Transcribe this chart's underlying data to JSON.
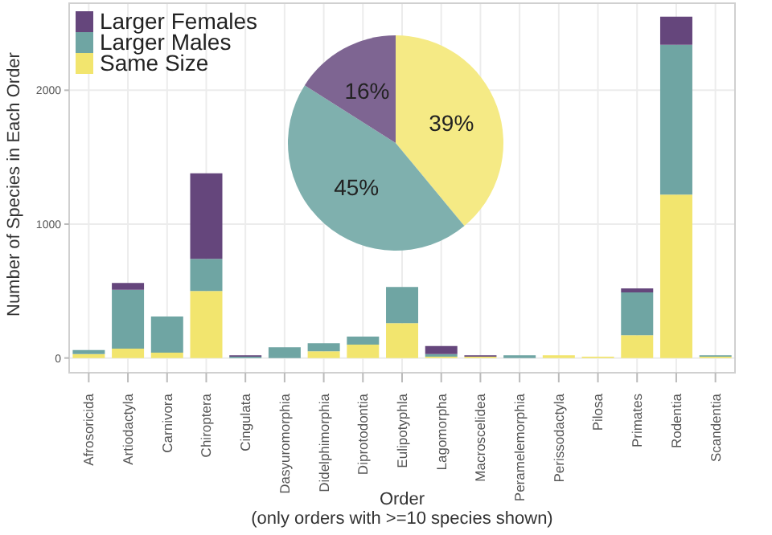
{
  "chart_data": [
    {
      "type": "bar",
      "stacked": true,
      "ylabel": "Number of Species in Each Order",
      "xlabel": "Order",
      "annotations": [
        "(only orders with >=10 species shown)"
      ],
      "categories": [
        "Afrosoricida",
        "Artiodactyla",
        "Carnivora",
        "Chiroptera",
        "Cingulata",
        "Dasyuromorphia",
        "Didelphimorphia",
        "Diprotodontia",
        "Eulipotyphla",
        "Lagomorpha",
        "Macroscelidea",
        "Peramelemorphia",
        "Perissodactyla",
        "Pilosa",
        "Primates",
        "Rodentia",
        "Scandentia"
      ],
      "series": [
        {
          "name": "Same Size",
          "color": "#f2e56e",
          "values": [
            30,
            70,
            40,
            500,
            0,
            0,
            50,
            100,
            260,
            10,
            10,
            0,
            20,
            10,
            170,
            1220,
            10
          ]
        },
        {
          "name": "Larger Males",
          "color": "#6fa5a3",
          "values": [
            30,
            440,
            270,
            240,
            10,
            80,
            60,
            60,
            270,
            20,
            0,
            20,
            0,
            0,
            320,
            1120,
            10
          ]
        },
        {
          "name": "Larger Females",
          "color": "#65467c",
          "values": [
            0,
            50,
            0,
            640,
            10,
            0,
            0,
            0,
            0,
            60,
            10,
            0,
            0,
            0,
            30,
            210,
            0
          ]
        }
      ],
      "ylim": [
        -110,
        2650
      ],
      "yticks": [
        0,
        1000,
        2000
      ],
      "grid": true,
      "legend": "top left"
    },
    {
      "type": "pie",
      "categories": [
        null,
        null,
        null
      ],
      "values": [
        39,
        45,
        16
      ],
      "colors": [
        "#f5ea85",
        "#7fb0ae",
        "#7e6592"
      ],
      "value_labels": [
        "39%",
        "45%",
        "16%"
      ]
    }
  ]
}
